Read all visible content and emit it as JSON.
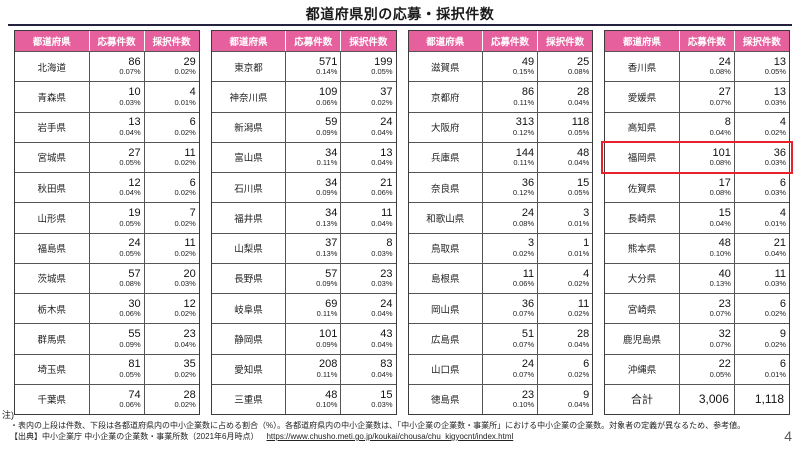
{
  "title": "都道府県別の応募・採択件数",
  "page_number": "4",
  "colors": {
    "header_bg": "#e7609e",
    "header_text": "#ffffff",
    "highlight_border": "#e8212b",
    "title_rule": "#23233f",
    "table_border": "#3c3c3c"
  },
  "table": {
    "headers": [
      "都道府県",
      "応募件数",
      "採択件数"
    ],
    "groups": [
      {
        "rows": [
          {
            "pref": "北海道",
            "apps": "86",
            "apps_pct": "0.07%",
            "adopted": "29",
            "adopted_pct": "0.02%"
          },
          {
            "pref": "青森県",
            "apps": "10",
            "apps_pct": "0.03%",
            "adopted": "4",
            "adopted_pct": "0.01%"
          },
          {
            "pref": "岩手県",
            "apps": "13",
            "apps_pct": "0.04%",
            "adopted": "6",
            "adopted_pct": "0.02%"
          },
          {
            "pref": "宮城県",
            "apps": "27",
            "apps_pct": "0.05%",
            "adopted": "11",
            "adopted_pct": "0.02%"
          },
          {
            "pref": "秋田県",
            "apps": "12",
            "apps_pct": "0.04%",
            "adopted": "6",
            "adopted_pct": "0.02%"
          },
          {
            "pref": "山形県",
            "apps": "19",
            "apps_pct": "0.05%",
            "adopted": "7",
            "adopted_pct": "0.02%"
          },
          {
            "pref": "福島県",
            "apps": "24",
            "apps_pct": "0.05%",
            "adopted": "11",
            "adopted_pct": "0.02%"
          },
          {
            "pref": "茨城県",
            "apps": "57",
            "apps_pct": "0.08%",
            "adopted": "20",
            "adopted_pct": "0.03%"
          },
          {
            "pref": "栃木県",
            "apps": "30",
            "apps_pct": "0.06%",
            "adopted": "12",
            "adopted_pct": "0.02%"
          },
          {
            "pref": "群馬県",
            "apps": "55",
            "apps_pct": "0.09%",
            "adopted": "23",
            "adopted_pct": "0.04%"
          },
          {
            "pref": "埼玉県",
            "apps": "81",
            "apps_pct": "0.05%",
            "adopted": "35",
            "adopted_pct": "0.02%"
          },
          {
            "pref": "千葉県",
            "apps": "74",
            "apps_pct": "0.06%",
            "adopted": "28",
            "adopted_pct": "0.02%"
          }
        ]
      },
      {
        "rows": [
          {
            "pref": "東京都",
            "apps": "571",
            "apps_pct": "0.14%",
            "adopted": "199",
            "adopted_pct": "0.05%"
          },
          {
            "pref": "神奈川県",
            "apps": "109",
            "apps_pct": "0.06%",
            "adopted": "37",
            "adopted_pct": "0.02%"
          },
          {
            "pref": "新潟県",
            "apps": "59",
            "apps_pct": "0.09%",
            "adopted": "24",
            "adopted_pct": "0.04%"
          },
          {
            "pref": "富山県",
            "apps": "34",
            "apps_pct": "0.11%",
            "adopted": "13",
            "adopted_pct": "0.04%"
          },
          {
            "pref": "石川県",
            "apps": "34",
            "apps_pct": "0.09%",
            "adopted": "21",
            "adopted_pct": "0.06%"
          },
          {
            "pref": "福井県",
            "apps": "34",
            "apps_pct": "0.13%",
            "adopted": "11",
            "adopted_pct": "0.04%"
          },
          {
            "pref": "山梨県",
            "apps": "37",
            "apps_pct": "0.13%",
            "adopted": "8",
            "adopted_pct": "0.03%"
          },
          {
            "pref": "長野県",
            "apps": "57",
            "apps_pct": "0.09%",
            "adopted": "23",
            "adopted_pct": "0.03%"
          },
          {
            "pref": "岐阜県",
            "apps": "69",
            "apps_pct": "0.11%",
            "adopted": "24",
            "adopted_pct": "0.04%"
          },
          {
            "pref": "静岡県",
            "apps": "101",
            "apps_pct": "0.09%",
            "adopted": "43",
            "adopted_pct": "0.04%"
          },
          {
            "pref": "愛知県",
            "apps": "208",
            "apps_pct": "0.11%",
            "adopted": "83",
            "adopted_pct": "0.04%"
          },
          {
            "pref": "三重県",
            "apps": "48",
            "apps_pct": "0.10%",
            "adopted": "15",
            "adopted_pct": "0.03%"
          }
        ]
      },
      {
        "rows": [
          {
            "pref": "滋賀県",
            "apps": "49",
            "apps_pct": "0.15%",
            "adopted": "25",
            "adopted_pct": "0.08%"
          },
          {
            "pref": "京都府",
            "apps": "86",
            "apps_pct": "0.11%",
            "adopted": "28",
            "adopted_pct": "0.04%"
          },
          {
            "pref": "大阪府",
            "apps": "313",
            "apps_pct": "0.12%",
            "adopted": "118",
            "adopted_pct": "0.05%"
          },
          {
            "pref": "兵庫県",
            "apps": "144",
            "apps_pct": "0.11%",
            "adopted": "48",
            "adopted_pct": "0.04%"
          },
          {
            "pref": "奈良県",
            "apps": "36",
            "apps_pct": "0.12%",
            "adopted": "15",
            "adopted_pct": "0.05%"
          },
          {
            "pref": "和歌山県",
            "apps": "24",
            "apps_pct": "0.08%",
            "adopted": "3",
            "adopted_pct": "0.01%"
          },
          {
            "pref": "鳥取県",
            "apps": "3",
            "apps_pct": "0.02%",
            "adopted": "1",
            "adopted_pct": "0.01%"
          },
          {
            "pref": "島根県",
            "apps": "11",
            "apps_pct": "0.06%",
            "adopted": "4",
            "adopted_pct": "0.02%"
          },
          {
            "pref": "岡山県",
            "apps": "36",
            "apps_pct": "0.07%",
            "adopted": "11",
            "adopted_pct": "0.02%"
          },
          {
            "pref": "広島県",
            "apps": "51",
            "apps_pct": "0.07%",
            "adopted": "28",
            "adopted_pct": "0.04%"
          },
          {
            "pref": "山口県",
            "apps": "24",
            "apps_pct": "0.07%",
            "adopted": "6",
            "adopted_pct": "0.02%"
          },
          {
            "pref": "徳島県",
            "apps": "23",
            "apps_pct": "0.10%",
            "adopted": "9",
            "adopted_pct": "0.04%"
          }
        ]
      },
      {
        "rows": [
          {
            "pref": "香川県",
            "apps": "24",
            "apps_pct": "0.08%",
            "adopted": "13",
            "adopted_pct": "0.05%"
          },
          {
            "pref": "愛媛県",
            "apps": "27",
            "apps_pct": "0.07%",
            "adopted": "13",
            "adopted_pct": "0.03%"
          },
          {
            "pref": "高知県",
            "apps": "8",
            "apps_pct": "0.04%",
            "adopted": "4",
            "adopted_pct": "0.02%"
          },
          {
            "pref": "福岡県",
            "apps": "101",
            "apps_pct": "0.08%",
            "adopted": "36",
            "adopted_pct": "0.03%",
            "highlight": true
          },
          {
            "pref": "佐賀県",
            "apps": "17",
            "apps_pct": "0.08%",
            "adopted": "6",
            "adopted_pct": "0.03%"
          },
          {
            "pref": "長崎県",
            "apps": "15",
            "apps_pct": "0.04%",
            "adopted": "4",
            "adopted_pct": "0.01%"
          },
          {
            "pref": "熊本県",
            "apps": "48",
            "apps_pct": "0.10%",
            "adopted": "21",
            "adopted_pct": "0.04%"
          },
          {
            "pref": "大分県",
            "apps": "40",
            "apps_pct": "0.13%",
            "adopted": "11",
            "adopted_pct": "0.03%"
          },
          {
            "pref": "宮崎県",
            "apps": "23",
            "apps_pct": "0.07%",
            "adopted": "6",
            "adopted_pct": "0.02%"
          },
          {
            "pref": "鹿児島県",
            "apps": "32",
            "apps_pct": "0.07%",
            "adopted": "9",
            "adopted_pct": "0.02%"
          },
          {
            "pref": "沖縄県",
            "apps": "22",
            "apps_pct": "0.05%",
            "adopted": "6",
            "adopted_pct": "0.01%"
          },
          {
            "pref": "合計",
            "apps": "3,006",
            "adopted": "1,118",
            "total": true
          }
        ]
      }
    ]
  },
  "footer": {
    "note_label": "注)",
    "note_line": "・表内の上段は件数、下段は各都道府県内の中小企業数に占める割合（%）。各都道府県内の中小企業数は、「中小企業の企業数・事業所」における中小企業の企業数。対象者の定義が異なるため、参考値。",
    "source_label": "【出典】中小企業庁 中小企業の企業数・事業所数（2021年6月時点）",
    "source_url": "https://www.chusho.meti.go.jp/koukai/chousa/chu_kigyocnt/index.html"
  }
}
